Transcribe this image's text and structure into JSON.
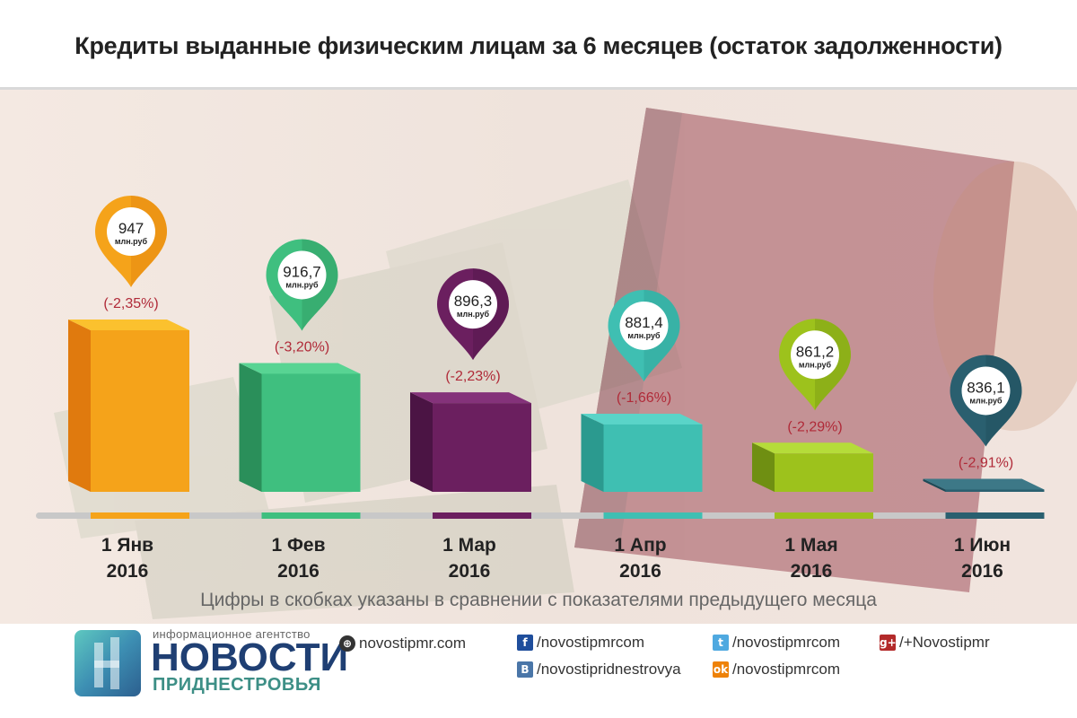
{
  "title": "Кредиты выданные физическим лицам за 6 месяцев (остаток задолженности)",
  "footnote": "Цифры в скобках указаны в сравнении с показателями предыдущего месяца",
  "chart_data": {
    "type": "bar",
    "title": "Кредиты выданные физическим лицам за 6 месяцев (остаток задолженности)",
    "unit": "млн.руб",
    "categories": [
      [
        "1 Янв",
        "2016"
      ],
      [
        "1 Фев",
        "2016"
      ],
      [
        "1 Мар",
        "2016"
      ],
      [
        "1 Апр",
        "2016"
      ],
      [
        "1 Мая",
        "2016"
      ],
      [
        "1 Июн",
        "2016"
      ]
    ],
    "values": [
      947,
      916.7,
      896.3,
      881.4,
      861.2,
      836.1
    ],
    "value_labels": [
      "947",
      "916,7",
      "896,3",
      "881,4",
      "861,2",
      "836,1"
    ],
    "change_labels": [
      "(-2,35%)",
      "(-3,20%)",
      "(-2,23%)",
      "(-1,66%)",
      "(-2,29%)",
      "(-2,91%)"
    ],
    "colors": [
      "#f5a31a",
      "#3fbf7f",
      "#6b1f5f",
      "#3fbfb2",
      "#9dc21c",
      "#2a5f6f"
    ],
    "colors_dark": [
      "#e07a0e",
      "#2a8f5a",
      "#4b1444",
      "#2b9a8f",
      "#6f8f12",
      "#1d4a57"
    ],
    "colors_top": [
      "#fbc12e",
      "#58d493",
      "#84327a",
      "#5ad4c8",
      "#b5dc3a",
      "#3d7887"
    ],
    "change_color": "#b02a38"
  },
  "footer": {
    "logo_small": "информационное агентство",
    "logo_big": "НОВОСТИ",
    "logo_sub": "ПРИДНЕСТРОВЬЯ",
    "links": [
      {
        "icon": "globe-icon",
        "text": "novostipmr.com"
      },
      {
        "icon": "facebook-icon",
        "text": "/novostipmrcom"
      },
      {
        "icon": "twitter-icon",
        "text": "/novostipmrcom"
      },
      {
        "icon": "google-plus-icon",
        "text": "/+Novostipmr"
      },
      {
        "icon": "vk-icon",
        "text": "/novostipridnestrovya"
      },
      {
        "icon": "odnoklassniki-icon",
        "text": "/novostipmrcom"
      }
    ]
  }
}
